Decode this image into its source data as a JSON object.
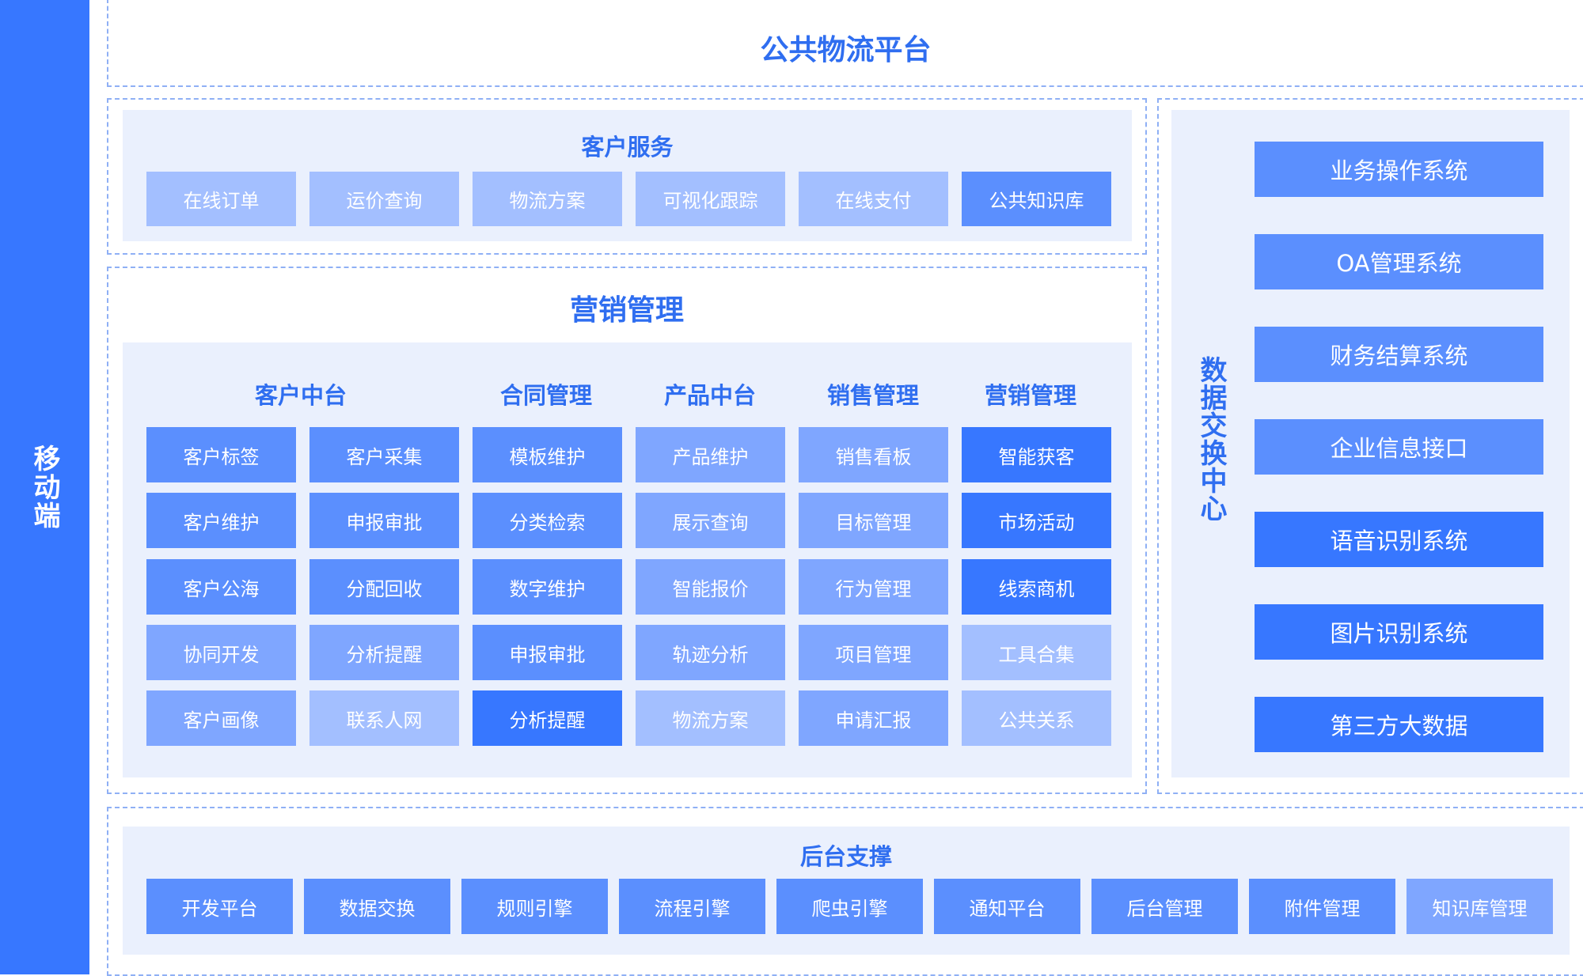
{
  "sidebar": {
    "label": "移动端"
  },
  "header": {
    "title": "公共物流平台"
  },
  "customer_service": {
    "title": "客户服务",
    "items": [
      {
        "label": "在线订单",
        "tone": "X"
      },
      {
        "label": "运价查询",
        "tone": "X"
      },
      {
        "label": "物流方案",
        "tone": "X"
      },
      {
        "label": "可视化跟踪",
        "tone": "X"
      },
      {
        "label": "在线支付",
        "tone": "X"
      },
      {
        "label": "公共知识库",
        "tone": "M"
      }
    ]
  },
  "marketing": {
    "title": "营销管理",
    "columns": [
      "客户中台",
      "合同管理",
      "产品中台",
      "销售管理",
      "营销管理"
    ],
    "rows": [
      [
        {
          "label": "客户标签",
          "tone": "M"
        },
        {
          "label": "客户采集",
          "tone": "M"
        },
        {
          "label": "模板维护",
          "tone": "M"
        },
        {
          "label": "产品维护",
          "tone": "L"
        },
        {
          "label": "销售看板",
          "tone": "L"
        },
        {
          "label": "智能获客",
          "tone": "D"
        }
      ],
      [
        {
          "label": "客户维护",
          "tone": "M"
        },
        {
          "label": "申报审批",
          "tone": "M"
        },
        {
          "label": "分类检索",
          "tone": "M"
        },
        {
          "label": "展示查询",
          "tone": "L"
        },
        {
          "label": "目标管理",
          "tone": "L"
        },
        {
          "label": "市场活动",
          "tone": "D"
        }
      ],
      [
        {
          "label": "客户公海",
          "tone": "M"
        },
        {
          "label": "分配回收",
          "tone": "M"
        },
        {
          "label": "数字维护",
          "tone": "M"
        },
        {
          "label": "智能报价",
          "tone": "L"
        },
        {
          "label": "行为管理",
          "tone": "L"
        },
        {
          "label": "线索商机",
          "tone": "D"
        }
      ],
      [
        {
          "label": "协同开发",
          "tone": "L"
        },
        {
          "label": "分析提醒",
          "tone": "L"
        },
        {
          "label": "申报审批",
          "tone": "M"
        },
        {
          "label": "轨迹分析",
          "tone": "L"
        },
        {
          "label": "项目管理",
          "tone": "L"
        },
        {
          "label": "工具合集",
          "tone": "X"
        }
      ],
      [
        {
          "label": "客户画像",
          "tone": "L"
        },
        {
          "label": "联系人网",
          "tone": "X"
        },
        {
          "label": "分析提醒",
          "tone": "D"
        },
        {
          "label": "物流方案",
          "tone": "X"
        },
        {
          "label": "申请汇报",
          "tone": "L"
        },
        {
          "label": "公共关系",
          "tone": "X"
        }
      ]
    ]
  },
  "data_exchange": {
    "title": "数据交换中心",
    "items": [
      {
        "label": "业务操作系统",
        "tone": "M"
      },
      {
        "label": "OA管理系统",
        "tone": "M"
      },
      {
        "label": "财务结算系统",
        "tone": "M"
      },
      {
        "label": "企业信息接口",
        "tone": "M"
      },
      {
        "label": "语音识别系统",
        "tone": "D"
      },
      {
        "label": "图片识别系统",
        "tone": "D"
      },
      {
        "label": "第三方大数据",
        "tone": "D"
      }
    ]
  },
  "backend": {
    "title": "后台支撑",
    "items": [
      {
        "label": "开发平台",
        "tone": "M"
      },
      {
        "label": "数据交换",
        "tone": "M"
      },
      {
        "label": "规则引擎",
        "tone": "M"
      },
      {
        "label": "流程引擎",
        "tone": "M"
      },
      {
        "label": "爬虫引擎",
        "tone": "M"
      },
      {
        "label": "通知平台",
        "tone": "M"
      },
      {
        "label": "后台管理",
        "tone": "M"
      },
      {
        "label": "附件管理",
        "tone": "M"
      },
      {
        "label": "知识库管理",
        "tone": "L"
      }
    ]
  },
  "colors": {
    "dark": "#3777ff",
    "medium": "#5b8ffe",
    "light": "#7fa6ff",
    "lighter": "#a3bfff",
    "panel": "#eaf0fd",
    "title": "#2f6ef0"
  }
}
